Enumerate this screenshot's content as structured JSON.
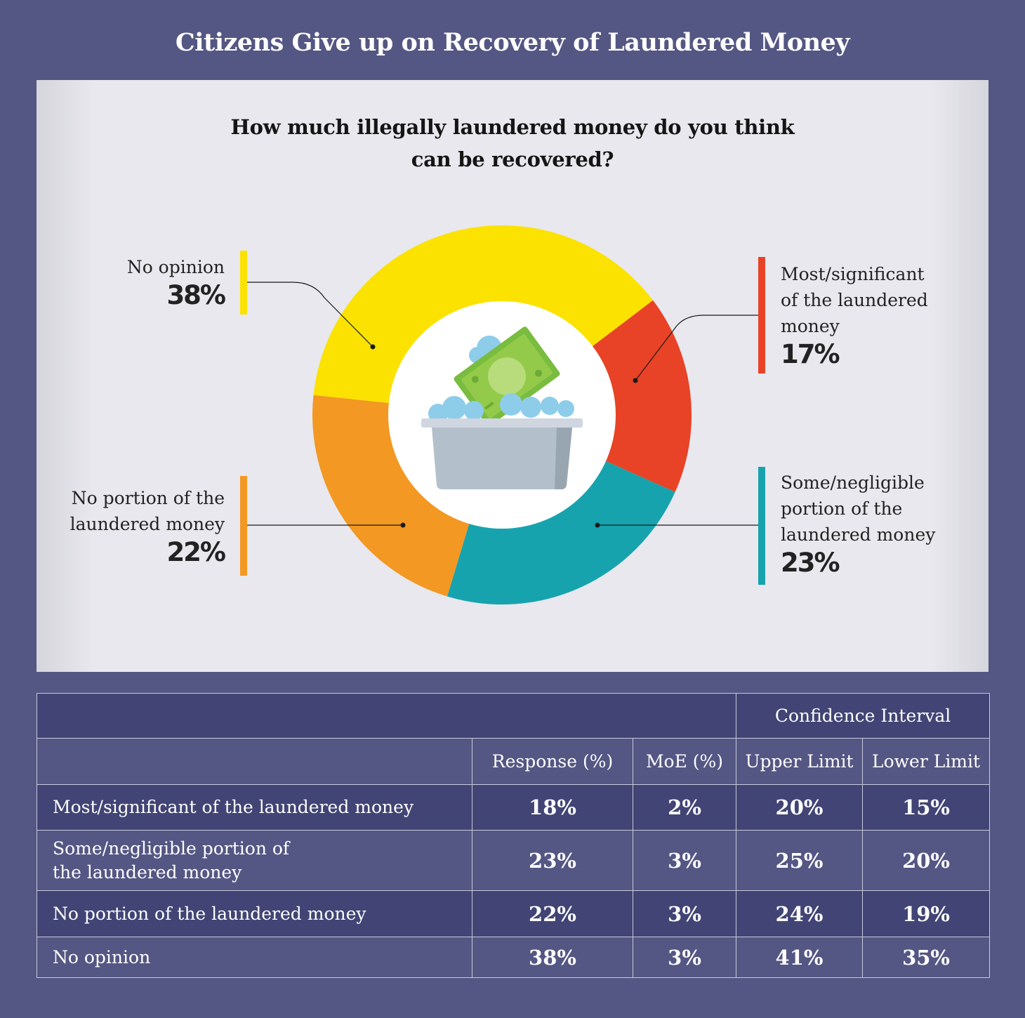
{
  "title": "Citizens Give up on Recovery of Laundered Money",
  "chart_data": [
    {
      "type": "pie",
      "title": "How much illegally laundered money do you think can be recovered?",
      "title_lines": [
        "How much illegally laundered money do you think",
        "can be recovered?"
      ],
      "slices": [
        {
          "label": "No opinion",
          "value": 38,
          "display": "38%",
          "color": "#FCE200",
          "label_lines": [
            "No opinion"
          ]
        },
        {
          "label": "Most/significant of the laundered money",
          "value": 17,
          "display": "17%",
          "color": "#E84326",
          "label_lines": [
            "Most/significant",
            "of the laundered",
            "money"
          ]
        },
        {
          "label": "Some/negligible portion of the laundered money",
          "value": 23,
          "display": "23%",
          "color": "#17A3AD",
          "label_lines": [
            "Some/negligible",
            "portion of the",
            "laundered money"
          ]
        },
        {
          "label": "No portion of the laundered money",
          "value": 22,
          "display": "22%",
          "color": "#F39822",
          "label_lines": [
            "No portion of the",
            "laundered money"
          ]
        }
      ],
      "center_icon": "money-wash-basin-icon"
    },
    {
      "type": "table",
      "group_header": "Confidence Interval",
      "columns": [
        "Response (%)",
        "MoE (%)",
        "Upper Limit",
        "Lower Limit"
      ],
      "rows": [
        {
          "label": "Most/significant of the laundered money",
          "label_lines": [
            "Most/significant of the laundered money"
          ],
          "values": [
            "18%",
            "2%",
            "20%",
            "15%"
          ]
        },
        {
          "label": "Some/negligible portion of the laundered money",
          "label_lines": [
            "Some/negligible portion of",
            "the laundered money"
          ],
          "values": [
            "23%",
            "3%",
            "25%",
            "20%"
          ]
        },
        {
          "label": "No portion of the laundered money",
          "label_lines": [
            "No portion of the laundered money"
          ],
          "values": [
            "22%",
            "3%",
            "24%",
            "19%"
          ]
        },
        {
          "label": "No opinion",
          "label_lines": [
            "No opinion"
          ],
          "values": [
            "38%",
            "3%",
            "41%",
            "35%"
          ]
        }
      ]
    }
  ]
}
